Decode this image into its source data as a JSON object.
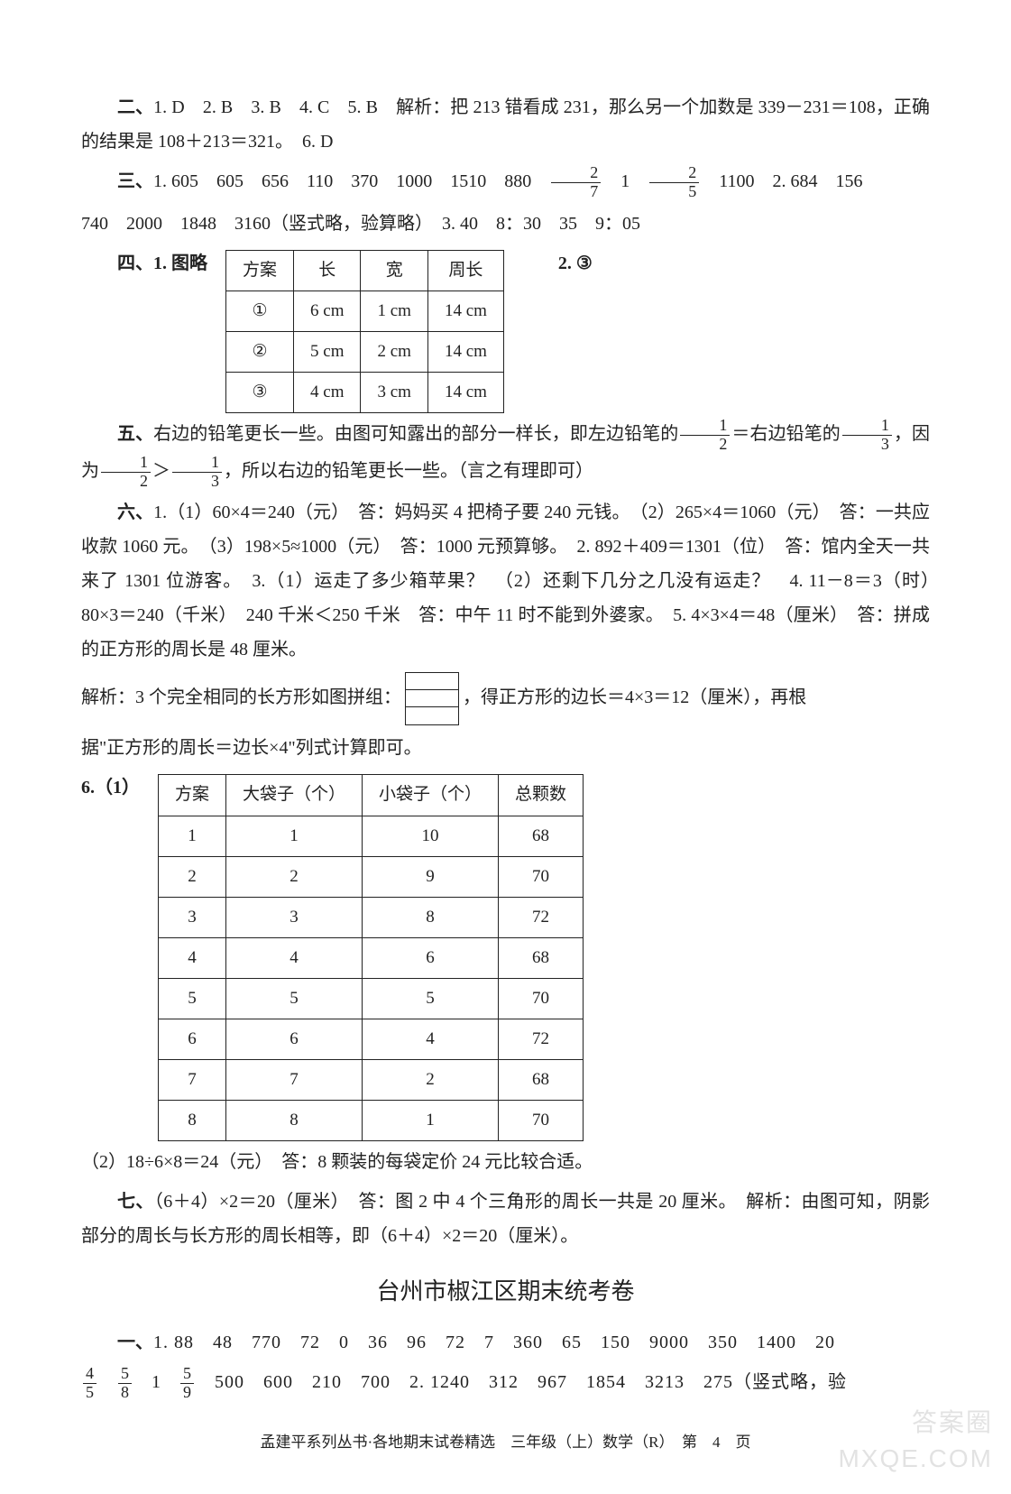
{
  "section2": {
    "label": "二、",
    "pre": "1. D　2. B　3. B　4. C　5. B　解析：把 213 错看成 231，那么另一个加数是 339－231＝108，正确的结果是 108＋213＝321。　6. D"
  },
  "section3": {
    "label": "三、",
    "line1_a": "1. 605　605　656　110　370　1000　1510　880　",
    "frac1": {
      "num": "2",
      "den": "7"
    },
    "line1_b": "　1　",
    "frac2": {
      "num": "2",
      "den": "5"
    },
    "line1_c": "　1100　2. 684　156",
    "line2": "740　2000　1848　3160（竖式略，验算略）　3. 40　8：30　35　9：05"
  },
  "section4": {
    "label": "四、1. 图略",
    "tail": "2. ③",
    "table": {
      "headers": [
        "方案",
        "长",
        "宽",
        "周长"
      ],
      "rows": [
        [
          "①",
          "6 cm",
          "1 cm",
          "14 cm"
        ],
        [
          "②",
          "5 cm",
          "2 cm",
          "14 cm"
        ],
        [
          "③",
          "4 cm",
          "3 cm",
          "14 cm"
        ]
      ]
    }
  },
  "section5": {
    "label": "五、",
    "t1": "右边的铅笔更长一些。由图可知露出的部分一样长，即左边铅笔的",
    "f1": {
      "num": "1",
      "den": "2"
    },
    "t2": "＝右边铅笔的",
    "f2": {
      "num": "1",
      "den": "3"
    },
    "t3": "，因为",
    "f3": {
      "num": "1",
      "den": "2"
    },
    "t4": "＞",
    "f4": {
      "num": "1",
      "den": "3"
    },
    "t5": "，所以右边的铅笔更长一些。（言之有理即可）"
  },
  "section6": {
    "label": "六、",
    "body": "1.（1）60×4＝240（元）　答：妈妈买 4 把椅子要 240 元钱。　（2）265×4＝1060（元）　答：一共应收款 1060 元。　（3）198×5≈1000（元）　答：1000 元预算够。　2. 892＋409＝1301（位）　答：馆内全天一共来了 1301 位游客。　3.（1）运走了多少箱苹果？　（2）还剩下几分之几没有运走？　4. 11－8＝3（时）　80×3＝240（千米）　240 千米＜250 千米　答：中午 11 时不能到外婆家。　5. 4×3×4＝48（厘米）　答：拼成的正方形的周长是 48 厘米。",
    "explain_pre": "解析：3 个完全相同的长方形如图拼组：",
    "explain_post": "，得正方形的边长＝4×3＝12（厘米），再根",
    "explain_tail": "据\"正方形的周长＝边长×4\"列式计算即可。",
    "q6_label": "6.（1）",
    "table2": {
      "headers": [
        "方案",
        "大袋子（个）",
        "小袋子（个）",
        "总颗数"
      ],
      "rows": [
        [
          "1",
          "1",
          "10",
          "68"
        ],
        [
          "2",
          "2",
          "9",
          "70"
        ],
        [
          "3",
          "3",
          "8",
          "72"
        ],
        [
          "4",
          "4",
          "6",
          "68"
        ],
        [
          "5",
          "5",
          "5",
          "70"
        ],
        [
          "6",
          "6",
          "4",
          "72"
        ],
        [
          "7",
          "7",
          "2",
          "68"
        ],
        [
          "8",
          "8",
          "1",
          "70"
        ]
      ]
    },
    "q6_2": "（2）18÷6×8＝24（元）　答：8 颗装的每袋定价 24 元比较合适。"
  },
  "section7": {
    "label": "七、",
    "body": "（6＋4）×2＝20（厘米）　答：图 2 中 4 个三角形的周长一共是 20 厘米。　解析：由图可知，阴影部分的周长与长方形的周长相等，即（6＋4）×2＝20（厘米）。"
  },
  "exam2": {
    "title": "台州市椒江区期末统考卷",
    "s1_label": "一、",
    "s1_l1": "1. 88　48　770　72　0　36　96　72　7　360　65　150　9000　350　1400　20",
    "f1": {
      "num": "4",
      "den": "5"
    },
    "f2": {
      "num": "5",
      "den": "8"
    },
    "mid": "　1　",
    "f3": {
      "num": "5",
      "den": "9"
    },
    "s1_l2b": "　500　600　210　700　2. 1240　312　967　1854　3213　275（竖式略，验"
  },
  "footer": "孟建平系列丛书·各地期末试卷精选　三年级（上）数学（R）　第　4　页",
  "watermark": {
    "l1": "答案圈",
    "l2": "MXQE.COM"
  }
}
